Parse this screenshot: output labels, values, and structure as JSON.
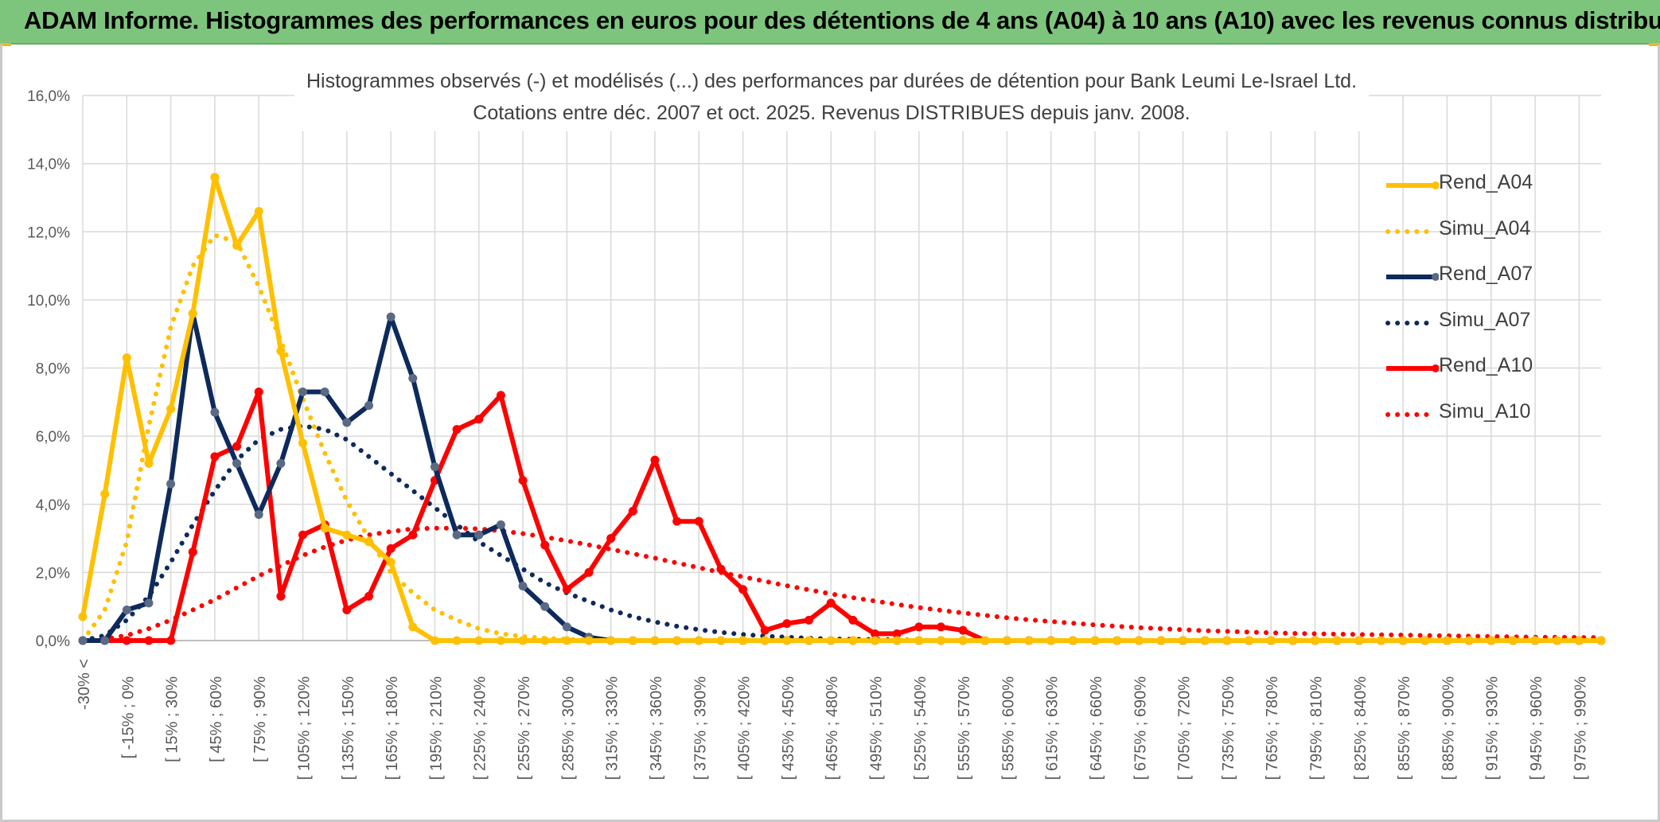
{
  "banner": {
    "title": "ADAM Informe. Histogrammes des performances en euros pour des détentions de 4 ans (A04) à 10 ans (A10) avec les revenus connus distribués"
  },
  "colors": {
    "banner_bg": "#7dc57d",
    "A04": "#ffc000",
    "A07": "#0e2a5c",
    "A10": "#ff0000",
    "grid": "#d9d9d9"
  },
  "chart_data": {
    "type": "line",
    "title": "Histogrammes observés (-) et modélisés (...) des performances par durées de détention pour Bank Leumi Le-Israel Ltd.",
    "subtitle": "Cotations entre déc. 2007 et oct. 2025. Revenus DISTRIBUES depuis janv. 2008.",
    "xlabel": "",
    "ylabel": "",
    "ylim": [
      0,
      16
    ],
    "y_ticks": [
      "0,0%",
      "2,0%",
      "4,0%",
      "6,0%",
      "8,0%",
      "10,0%",
      "12,0%",
      "14,0%",
      "16,0%"
    ],
    "x_labels_shown": [
      "-30% <",
      "[ -15% ; 0%",
      "[ 15% ; 30%",
      "[ 45% ; 60%",
      "[ 75% ; 90%",
      "[ 105% ; 120%",
      "[ 135% ; 150%",
      "[ 165% ; 180%",
      "[ 195% ; 210%",
      "[ 225% ; 240%",
      "[ 255% ; 270%",
      "[ 285% ; 300%",
      "[ 315% ; 330%",
      "[ 345% ; 360%",
      "[ 375% ; 390%",
      "[ 405% ; 420%",
      "[ 435% ; 450%",
      "[ 465% ; 480%",
      "[ 495% ; 510%",
      "[ 525% ; 540%",
      "[ 555% ; 570%",
      "[ 585% ; 600%",
      "[ 615% ; 630%",
      "[ 645% ; 660%",
      "[ 675% ; 690%",
      "[ 705% ; 720%",
      "[ 735% ; 750%",
      "[ 765% ; 780%",
      "[ 795% ; 810%",
      "[ 825% ; 840%",
      "[ 855% ; 870%",
      "[ 885% ; 900%",
      "[ 915% ; 930%",
      "[ 945% ; 960%",
      "[ 975% ; 990%"
    ],
    "n_bins": 70,
    "legend": [
      "Rend_A04",
      "Simu_A04",
      "Rend_A07",
      "Simu_A07",
      "Rend_A10",
      "Simu_A10"
    ],
    "series": [
      {
        "name": "Rend_A04",
        "style": "solid",
        "color": "#ffc000",
        "values": [
          0.7,
          4.3,
          8.3,
          5.2,
          6.8,
          9.6,
          13.6,
          11.6,
          12.6,
          8.5,
          5.8,
          3.3,
          3.1,
          2.9,
          2.3,
          0.4,
          0.0,
          0.0,
          0.0,
          0.0,
          0.0,
          0.0,
          0.0,
          0.0,
          0.0,
          0.0,
          0.0
        ]
      },
      {
        "name": "Simu_A04",
        "style": "dotted",
        "color": "#ffc000",
        "values": [
          0.0,
          0.9,
          2.9,
          6.3,
          9.2,
          11.0,
          11.9,
          11.7,
          10.4,
          8.8,
          7.1,
          5.5,
          4.1,
          3.0,
          2.0,
          1.4,
          0.9,
          0.6,
          0.35,
          0.2,
          0.12,
          0.07,
          0.04,
          0.02,
          0.01,
          0.0,
          0.0,
          0.0,
          0.0,
          0.0
        ]
      },
      {
        "name": "Rend_A07",
        "style": "solid",
        "color": "#0e2a5c",
        "values": [
          0.0,
          0.0,
          0.9,
          1.1,
          4.6,
          9.6,
          6.7,
          5.2,
          3.7,
          5.2,
          7.3,
          7.3,
          6.4,
          6.9,
          9.5,
          7.7,
          5.1,
          3.1,
          3.1,
          3.4,
          1.6,
          1.0,
          0.4,
          0.1,
          0.0,
          0.0,
          0.0,
          0.0,
          0.0,
          0.0,
          0.0,
          0.0,
          0.0,
          0.0,
          0.0,
          0.0,
          0.0,
          0.0,
          0.0,
          0.0,
          0.0,
          0.0,
          0.0,
          0.0
        ]
      },
      {
        "name": "Simu_A07",
        "style": "dotted",
        "color": "#0e2a5c",
        "values": [
          0.0,
          0.15,
          0.6,
          1.3,
          2.3,
          3.4,
          4.4,
          5.3,
          5.9,
          6.2,
          6.3,
          6.2,
          5.9,
          5.4,
          4.9,
          4.4,
          3.9,
          3.4,
          2.9,
          2.5,
          2.1,
          1.7,
          1.4,
          1.15,
          0.9,
          0.7,
          0.55,
          0.42,
          0.32,
          0.24,
          0.18,
          0.13,
          0.1,
          0.07,
          0.05,
          0.04,
          0.03,
          0.02,
          0.01,
          0.0,
          0.0,
          0.0,
          0.0,
          0.0,
          0.0
        ]
      },
      {
        "name": "Rend_A10",
        "style": "solid",
        "color": "#ff0000",
        "values": [
          0.0,
          0.0,
          0.0,
          0.0,
          0.0,
          2.6,
          5.4,
          5.7,
          7.3,
          1.3,
          3.1,
          3.4,
          0.9,
          1.3,
          2.7,
          3.1,
          4.7,
          6.2,
          6.5,
          7.2,
          4.7,
          2.8,
          1.5,
          2.0,
          3.0,
          3.8,
          5.3,
          3.5,
          3.5,
          2.1,
          1.5,
          0.3,
          0.5,
          0.6,
          1.1,
          0.6,
          0.2,
          0.2,
          0.4,
          0.4,
          0.3,
          0.0,
          0.0,
          0.0,
          0.0,
          0.0,
          0.0,
          0.0,
          0.0,
          0.0,
          0.0,
          0.0,
          0.0,
          0.0,
          0.0,
          0.0,
          0.0,
          0.0,
          0.0,
          0.0,
          0.0,
          0.0,
          0.0,
          0.0,
          0.0,
          0.0,
          0.0,
          0.0,
          0.0,
          0.0
        ]
      },
      {
        "name": "Simu_A10",
        "style": "dotted",
        "color": "#ff0000",
        "values": [
          0.0,
          0.05,
          0.15,
          0.35,
          0.6,
          0.9,
          1.2,
          1.55,
          1.9,
          2.2,
          2.5,
          2.75,
          2.95,
          3.1,
          3.2,
          3.28,
          3.3,
          3.3,
          3.28,
          3.22,
          3.14,
          3.04,
          2.93,
          2.81,
          2.68,
          2.55,
          2.42,
          2.28,
          2.14,
          2.0,
          1.87,
          1.74,
          1.61,
          1.49,
          1.37,
          1.26,
          1.16,
          1.06,
          0.97,
          0.89,
          0.81,
          0.74,
          0.67,
          0.61,
          0.56,
          0.51,
          0.46,
          0.42,
          0.38,
          0.35,
          0.32,
          0.29,
          0.27,
          0.25,
          0.23,
          0.21,
          0.2,
          0.19,
          0.18,
          0.17,
          0.16,
          0.15,
          0.14,
          0.13,
          0.12,
          0.11,
          0.1,
          0.1,
          0.09,
          0.09
        ]
      }
    ]
  }
}
